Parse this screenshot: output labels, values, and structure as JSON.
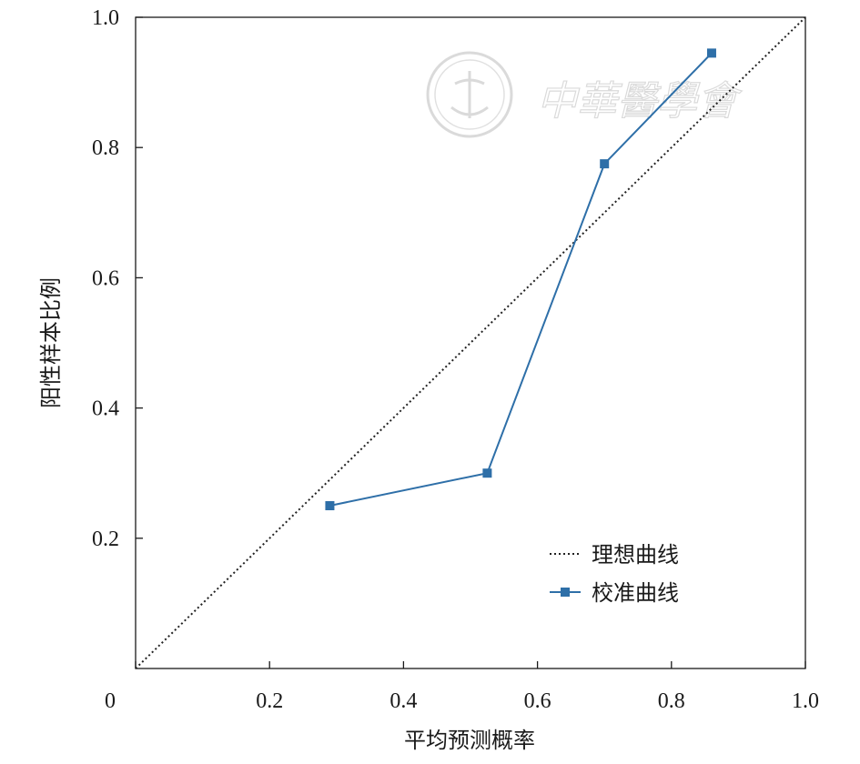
{
  "chart_data": {
    "type": "line",
    "xlabel": "平均预测概率",
    "ylabel": "阳性样本比例",
    "xlim": [
      0,
      1.0
    ],
    "ylim": [
      0,
      1.0
    ],
    "x_ticks": [
      "0",
      "0.2",
      "0.4",
      "0.6",
      "0.8",
      "1.0"
    ],
    "y_ticks": [
      "0.2",
      "0.4",
      "0.6",
      "0.8",
      "1.0"
    ],
    "grid": false,
    "legend_position": "bottom-right",
    "series": [
      {
        "name": "理想曲线",
        "style": "dotted",
        "color": "#222222",
        "x": [
          0,
          1.0
        ],
        "y": [
          0,
          1.0
        ]
      },
      {
        "name": "校准曲线",
        "style": "solid-square-markers",
        "color": "#2E6FA8",
        "x": [
          0.29,
          0.525,
          0.7,
          0.86
        ],
        "y": [
          0.25,
          0.3,
          0.775,
          0.945
        ]
      }
    ]
  },
  "watermark": {
    "text": "中華醫學會",
    "type": "logo"
  }
}
